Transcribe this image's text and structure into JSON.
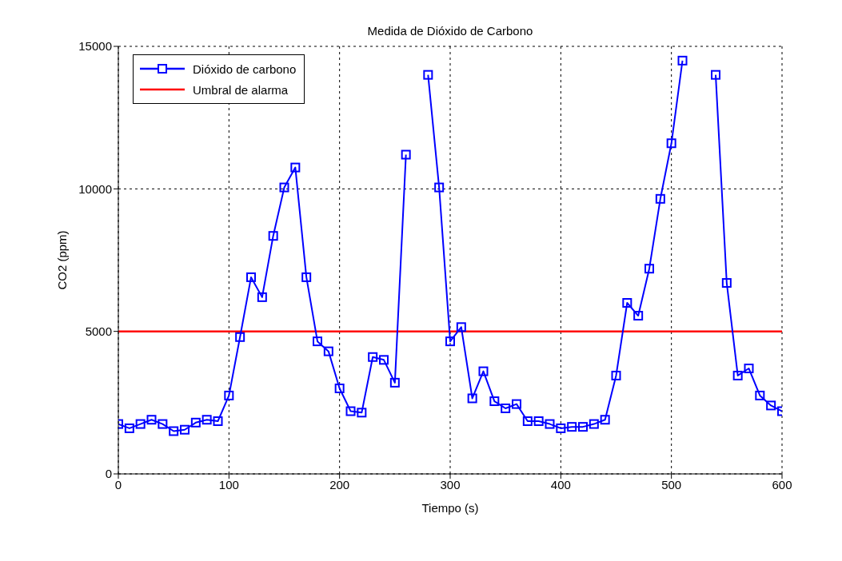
{
  "chart_data": {
    "type": "line",
    "title": "Medida de Dióxido de Carbono",
    "xlabel": "Tiempo (s)",
    "ylabel": "CO2 (ppm)",
    "x": [
      0,
      10,
      20,
      30,
      40,
      50,
      60,
      70,
      80,
      90,
      100,
      110,
      120,
      130,
      140,
      150,
      160,
      170,
      180,
      190,
      200,
      210,
      220,
      230,
      240,
      250,
      260,
      270,
      280,
      290,
      300,
      310,
      320,
      330,
      340,
      350,
      360,
      370,
      380,
      390,
      400,
      410,
      420,
      430,
      440,
      450,
      460,
      470,
      480,
      490,
      500,
      510,
      520,
      530,
      540,
      550,
      560,
      570,
      580,
      590,
      600
    ],
    "series": [
      {
        "name": "Dióxido de carbono",
        "color": "#0000ff",
        "values": [
          1750,
          1600,
          1750,
          1900,
          1750,
          1500,
          1550,
          1800,
          1900,
          1850,
          2750,
          4800,
          6900,
          6200,
          8350,
          10050,
          10750,
          6900,
          4650,
          4300,
          3000,
          2200,
          2150,
          4100,
          4000,
          3200,
          11200,
          null,
          14000,
          10050,
          4650,
          5150,
          2650,
          3600,
          2550,
          2300,
          2450,
          1850,
          1850,
          1750,
          1600,
          1650,
          1650,
          1750,
          1900,
          3450,
          6000,
          5550,
          7200,
          9650,
          11600,
          14500,
          null,
          null,
          14000,
          6700,
          3450,
          3700,
          2750,
          2400,
          2200
        ]
      }
    ],
    "ref_lines": [
      {
        "axis": "y",
        "value": 5000,
        "label": "Umbral de alarma",
        "color": "#ff0000"
      }
    ],
    "xlim": [
      0,
      600
    ],
    "xticks": [
      0,
      100,
      200,
      300,
      400,
      500,
      600
    ],
    "ylim": [
      0,
      15000
    ],
    "yticks": [
      0,
      5000,
      10000,
      15000
    ],
    "grid": true,
    "legend": "top left",
    "marker": "square",
    "line_style": "solid"
  }
}
